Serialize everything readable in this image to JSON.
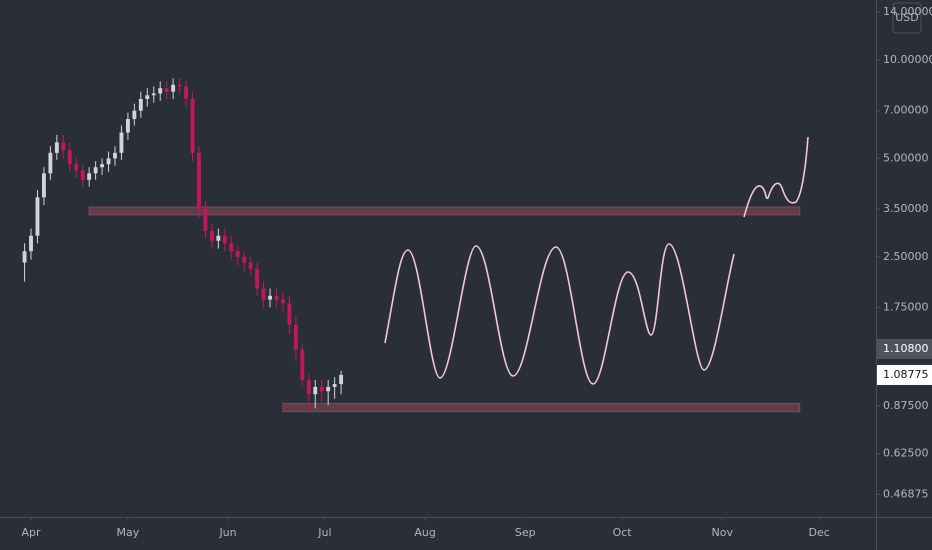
{
  "chart_data": {
    "type": "candlestick",
    "currency": "USD",
    "log_scale": true,
    "grid": false,
    "up_color": "#d1d4dc",
    "down_color": "#c2185b",
    "zone_color": "#8c4a5a",
    "x": [
      -2,
      0,
      2,
      4,
      6,
      8,
      10,
      12,
      14,
      16,
      18,
      20,
      22,
      24,
      26,
      28,
      30,
      32,
      34,
      36,
      38,
      40,
      42,
      44,
      46,
      48,
      50,
      52,
      54,
      56,
      58,
      60,
      62,
      64,
      66,
      68,
      70,
      72,
      74,
      76,
      78,
      80,
      82,
      84,
      86,
      88,
      90,
      92,
      94,
      96
    ],
    "open": [
      2.4,
      2.6,
      2.9,
      3.8,
      4.5,
      5.2,
      5.6,
      5.3,
      4.8,
      4.6,
      4.3,
      4.5,
      4.7,
      4.8,
      5.0,
      5.2,
      6.0,
      6.6,
      7.0,
      7.6,
      7.8,
      7.9,
      8.2,
      8.0,
      8.4,
      8.3,
      7.6,
      5.2,
      3.5,
      3.0,
      2.8,
      2.9,
      2.75,
      2.6,
      2.5,
      2.4,
      2.3,
      2.0,
      1.85,
      1.9,
      1.85,
      1.8,
      1.55,
      1.3,
      1.05,
      0.95,
      1.0,
      0.97,
      1.0,
      1.02
    ],
    "high": [
      2.75,
      3.05,
      4.0,
      4.7,
      5.45,
      5.9,
      5.9,
      5.6,
      5.05,
      4.8,
      4.7,
      4.9,
      5.0,
      5.25,
      5.45,
      6.3,
      6.9,
      7.35,
      8.0,
      8.2,
      8.3,
      8.6,
      8.6,
      8.8,
      8.8,
      8.7,
      8.0,
      5.45,
      3.7,
      3.15,
      3.05,
      3.05,
      2.9,
      2.7,
      2.6,
      2.5,
      2.4,
      2.1,
      2.0,
      2.0,
      1.95,
      1.9,
      1.65,
      1.35,
      1.1,
      1.05,
      1.05,
      1.05,
      1.07,
      1.12
    ],
    "low": [
      2.1,
      2.45,
      2.75,
      3.6,
      4.3,
      4.95,
      5.0,
      4.55,
      4.35,
      4.1,
      4.1,
      4.3,
      4.45,
      4.55,
      4.75,
      4.95,
      5.7,
      6.3,
      6.65,
      7.2,
      7.4,
      7.5,
      7.6,
      7.6,
      7.9,
      7.2,
      4.9,
      3.3,
      2.85,
      2.65,
      2.65,
      2.6,
      2.45,
      2.35,
      2.25,
      2.2,
      1.9,
      1.75,
      1.75,
      1.75,
      1.7,
      1.45,
      1.2,
      1.0,
      0.85,
      0.86,
      0.9,
      0.88,
      0.92,
      0.95
    ],
    "close": [
      2.6,
      2.9,
      3.8,
      4.5,
      5.2,
      5.6,
      5.3,
      4.8,
      4.6,
      4.3,
      4.5,
      4.7,
      4.8,
      5.0,
      5.2,
      6.0,
      6.6,
      7.0,
      7.6,
      7.8,
      7.9,
      8.2,
      8.0,
      8.4,
      8.3,
      7.6,
      5.2,
      3.5,
      3.0,
      2.8,
      2.9,
      2.75,
      2.6,
      2.5,
      2.4,
      2.3,
      2.0,
      1.85,
      1.9,
      1.85,
      1.8,
      1.55,
      1.3,
      1.05,
      0.95,
      1.0,
      0.97,
      1.0,
      1.02,
      1.088
    ],
    "zones": [
      {
        "from": 18,
        "to": 238,
        "low": 3.36,
        "high": 3.55
      },
      {
        "from": 78,
        "to": 238,
        "low": 0.84,
        "high": 0.89
      }
    ],
    "price_labels": [
      {
        "value": 1.108,
        "label": "1.10800"
      },
      {
        "value": 1.08775,
        "label": "1.08775"
      }
    ],
    "xlim": [
      -9.6,
      261.6
    ],
    "xticks": [
      {
        "value": 0,
        "label": "Apr"
      },
      {
        "value": 30,
        "label": "May"
      },
      {
        "value": 61,
        "label": "Jun"
      },
      {
        "value": 91,
        "label": "Jul"
      },
      {
        "value": 122,
        "label": "Aug"
      },
      {
        "value": 153,
        "label": "Sep"
      },
      {
        "value": 183,
        "label": "Oct"
      },
      {
        "value": 214,
        "label": "Nov"
      },
      {
        "value": 244,
        "label": "Dec"
      }
    ],
    "ylim": [
      0.4,
      15.26
    ],
    "yticks": [
      {
        "value": 14,
        "label": "14.00000"
      },
      {
        "value": 10,
        "label": "10.00000"
      },
      {
        "value": 7,
        "label": "7.00000"
      },
      {
        "value": 5,
        "label": "5.00000"
      },
      {
        "value": 3.5,
        "label": "3.50000"
      },
      {
        "value": 2.5,
        "label": "2.50000"
      },
      {
        "value": 1.75,
        "label": "1.75000"
      },
      {
        "value": 0.875,
        "label": "0.87500"
      },
      {
        "value": 0.625,
        "label": "0.62500"
      },
      {
        "value": 0.46875,
        "label": "0.46875"
      }
    ]
  }
}
